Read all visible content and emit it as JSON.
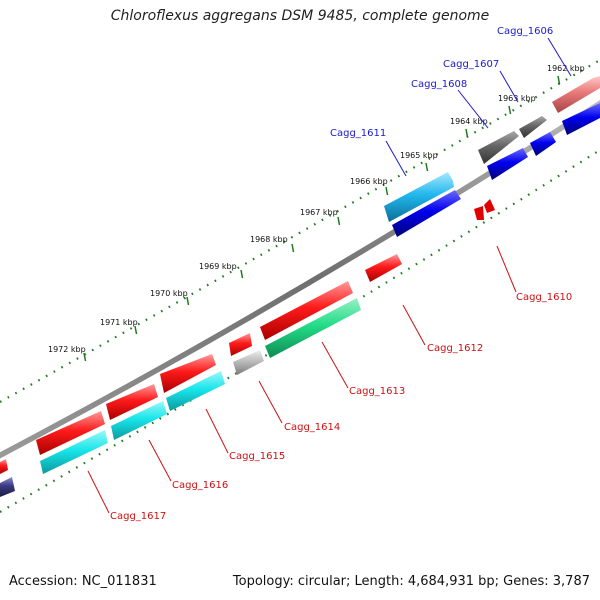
{
  "title": "Chloroflexus aggregans DSM 9485, complete genome",
  "accession": "Accession: NC_011831",
  "summary": "Topology: circular; Length: 4,684,931 bp; Genes: 3,787",
  "colors": {
    "red": "#ee1111",
    "blue": "#0a0ae0",
    "cyan": "#19e6ea",
    "green": "#22dd88",
    "gray": "#b8b8b8",
    "darkgray": "#666666",
    "pink": "#e87878",
    "lightblue": "#22b8ee",
    "navy": "#3a3a80",
    "label_blue": "#1a1acc",
    "label_red": "#cc1111",
    "ruler_green": "#1e7a1e"
  },
  "ruler": {
    "ticks": [
      "1962 kbp",
      "1963 kbp",
      "1964 kbp",
      "1965 kbp",
      "1966 kbp",
      "1967 kbp",
      "1968 kbp",
      "1969 kbp",
      "1970 kbp",
      "1971 kbp",
      "1972 kbp"
    ]
  },
  "gene_labels": [
    "Cagg_1606",
    "Cagg_1607",
    "Cagg_1608",
    "Cagg_1611",
    "Cagg_1610",
    "Cagg_1612",
    "Cagg_1613",
    "Cagg_1614",
    "Cagg_1615",
    "Cagg_1616",
    "Cagg_1617"
  ]
}
